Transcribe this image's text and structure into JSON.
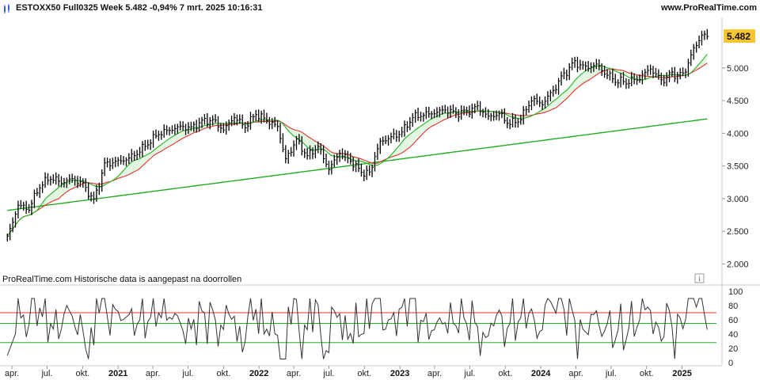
{
  "header": {
    "title": "ESTOXX50 Full0325 Week 5.482 -0,94% 7 mrt. 2025 10:16:31",
    "site": "www.ProRealTime.com"
  },
  "price_panel": {
    "note": "ProRealTime.com  Historische data is aangepast na doorrollen",
    "last_price_label": "5.482",
    "y_ticks": [
      "5.000",
      "4.500",
      "4.000",
      "3.500",
      "3.000",
      "2.500",
      "2.000"
    ],
    "info_icon": "info-icon"
  },
  "rsi_panel": {
    "y_ticks": [
      "100",
      "80",
      "60",
      "40",
      "20",
      "0"
    ]
  },
  "x_axis": [
    {
      "label": "apr.",
      "bold": false
    },
    {
      "label": "jul.",
      "bold": false
    },
    {
      "label": "okt.",
      "bold": false
    },
    {
      "label": "2021",
      "bold": true
    },
    {
      "label": "apr.",
      "bold": false
    },
    {
      "label": "jul.",
      "bold": false
    },
    {
      "label": "okt.",
      "bold": false
    },
    {
      "label": "2022",
      "bold": true
    },
    {
      "label": "apr.",
      "bold": false
    },
    {
      "label": "jul.",
      "bold": false
    },
    {
      "label": "okt.",
      "bold": false
    },
    {
      "label": "2023",
      "bold": true
    },
    {
      "label": "apr.",
      "bold": false
    },
    {
      "label": "jul.",
      "bold": false
    },
    {
      "label": "okt.",
      "bold": false
    },
    {
      "label": "2024",
      "bold": true
    },
    {
      "label": "apr.",
      "bold": false
    },
    {
      "label": "jul.",
      "bold": false
    },
    {
      "label": "okt.",
      "bold": false
    },
    {
      "label": "2025",
      "bold": true
    }
  ],
  "colors": {
    "candle": "#000000",
    "ma_red": "#e83030",
    "ma_green": "#22b022",
    "ma_long": "#1fae1f",
    "fill_green": "#d9f5d9",
    "rsi_line": "#333333",
    "rsi_upper": "#e83030",
    "rsi_lower": "#22b022",
    "rsi_fill": "#b9b9ee",
    "price_tag_bg": "#f7c531",
    "axis": "#cccccc"
  },
  "chart_data": [
    {
      "type": "ohlc",
      "series": [
        {
          "name": "",
          "points": [
            [
              "2020-03-20",
              2400
            ],
            [
              "2020-04-17",
              2900
            ],
            [
              "2020-05-15",
              2850
            ],
            [
              "2020-06-12",
              3200
            ],
            [
              "2020-07-10",
              3330
            ],
            [
              "2020-08-07",
              3250
            ],
            [
              "2020-09-04",
              3300
            ],
            [
              "2020-10-02",
              3220
            ],
            [
              "2020-10-30",
              2960
            ],
            [
              "2020-11-27",
              3520
            ],
            [
              "2020-12-25",
              3560
            ],
            [
              "2021-01-22",
              3600
            ],
            [
              "2021-02-19",
              3700
            ],
            [
              "2021-03-19",
              3850
            ],
            [
              "2021-04-16",
              4000
            ],
            [
              "2021-05-14",
              4050
            ],
            [
              "2021-06-11",
              4100
            ],
            [
              "2021-07-09",
              4080
            ],
            [
              "2021-08-06",
              4180
            ],
            [
              "2021-09-03",
              4200
            ],
            [
              "2021-10-01",
              4050
            ],
            [
              "2021-10-29",
              4250
            ],
            [
              "2021-11-26",
              4100
            ],
            [
              "2021-12-24",
              4300
            ],
            [
              "2022-01-21",
              4200
            ],
            [
              "2022-02-18",
              4100
            ],
            [
              "2022-03-11",
              3600
            ],
            [
              "2022-04-08",
              3900
            ],
            [
              "2022-05-06",
              3650
            ],
            [
              "2022-06-03",
              3800
            ],
            [
              "2022-07-01",
              3450
            ],
            [
              "2022-07-29",
              3700
            ],
            [
              "2022-08-26",
              3580
            ],
            [
              "2022-09-23",
              3400
            ],
            [
              "2022-10-14",
              3400
            ],
            [
              "2022-11-11",
              3870
            ],
            [
              "2022-12-09",
              3940
            ],
            [
              "2023-01-06",
              4020
            ],
            [
              "2023-02-03",
              4250
            ],
            [
              "2023-03-03",
              4290
            ],
            [
              "2023-03-31",
              4310
            ],
            [
              "2023-04-28",
              4360
            ],
            [
              "2023-05-26",
              4300
            ],
            [
              "2023-06-23",
              4330
            ],
            [
              "2023-07-21",
              4400
            ],
            [
              "2023-08-18",
              4250
            ],
            [
              "2023-09-15",
              4300
            ],
            [
              "2023-10-13",
              4150
            ],
            [
              "2023-11-10",
              4230
            ],
            [
              "2023-12-08",
              4520
            ],
            [
              "2024-01-05",
              4450
            ],
            [
              "2024-02-02",
              4650
            ],
            [
              "2024-03-01",
              4900
            ],
            [
              "2024-03-29",
              5080
            ],
            [
              "2024-04-26",
              5000
            ],
            [
              "2024-05-24",
              5050
            ],
            [
              "2024-06-21",
              4900
            ],
            [
              "2024-07-19",
              4800
            ],
            [
              "2024-08-16",
              4800
            ],
            [
              "2024-09-13",
              4850
            ],
            [
              "2024-10-11",
              4990
            ],
            [
              "2024-11-08",
              4800
            ],
            [
              "2024-12-06",
              4900
            ],
            [
              "2025-01-03",
              4880
            ],
            [
              "2025-01-31",
              5280
            ],
            [
              "2025-02-21",
              5500
            ],
            [
              "2025-03-07",
              5482
            ]
          ]
        }
      ],
      "ylim": [
        1800,
        5700
      ],
      "xlim": [
        "2020-03-01",
        "2025-03-31"
      ]
    },
    {
      "type": "line",
      "ylim": [
        0,
        100
      ],
      "reference_lines": [
        70,
        55,
        28
      ]
    }
  ]
}
